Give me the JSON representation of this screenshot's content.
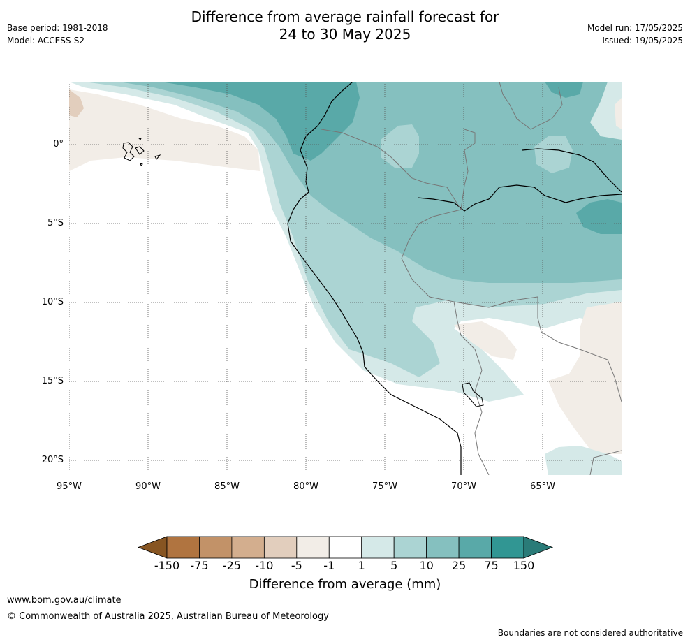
{
  "title_line1": "Difference from average rainfall forecast for",
  "title_line2": "24 to 30 May 2025",
  "base_period": "Base period: 1981-2018",
  "model": "Model: ACCESS-S2",
  "model_run": "Model run: 17/05/2025",
  "issued": "Issued: 19/05/2025",
  "lat_labels": [
    "0°",
    "5°S",
    "10°S",
    "15°S",
    "20°S"
  ],
  "lon_labels": [
    "95°W",
    "90°W",
    "85°W",
    "80°W",
    "75°W",
    "70°W",
    "65°W"
  ],
  "colorbar": {
    "title": "Difference from average (mm)",
    "ticks": [
      "-150",
      "-75",
      "-25",
      "-10",
      "-5",
      "-1",
      "1",
      "5",
      "10",
      "25",
      "75",
      "150"
    ],
    "colors": [
      "#875522",
      "#b07440",
      "#c29268",
      "#d3ae8e",
      "#e2cebd",
      "#f2ede7",
      "#ffffff",
      "#d5e9e8",
      "#abd4d3",
      "#85c0bf",
      "#59a9a8",
      "#319693",
      "#2a7b78"
    ]
  },
  "footer": {
    "url": "www.bom.gov.au/climate",
    "copyright": "© Commonwealth of Australia 2025, Australian Bureau of Meteorology",
    "disclaimer": "Boundaries are not considered authoritative"
  }
}
